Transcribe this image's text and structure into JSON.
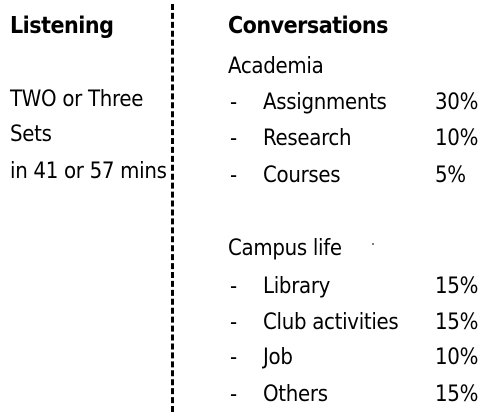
{
  "listening": {
    "heading": "Listening",
    "lines": [
      "TWO or Three",
      "Sets",
      "in 41 or 57 mins"
    ]
  },
  "conversations": {
    "heading": "Conversations",
    "groups": [
      {
        "title": "Academia",
        "items": [
          {
            "bullet": "-",
            "label": "Assignments",
            "percent": "30%"
          },
          {
            "bullet": "-",
            "label": "Research",
            "percent": "10%"
          },
          {
            "bullet": "-",
            "label": "Courses",
            "percent": "5%"
          }
        ]
      },
      {
        "title": "Campus life",
        "items": [
          {
            "bullet": "-",
            "label": "Library",
            "percent": "15%"
          },
          {
            "bullet": "-",
            "label": "Club activities",
            "percent": "15%"
          },
          {
            "bullet": "-",
            "label": "Job",
            "percent": "10%"
          },
          {
            "bullet": "-",
            "label": "Others",
            "percent": "15%"
          }
        ]
      }
    ]
  }
}
